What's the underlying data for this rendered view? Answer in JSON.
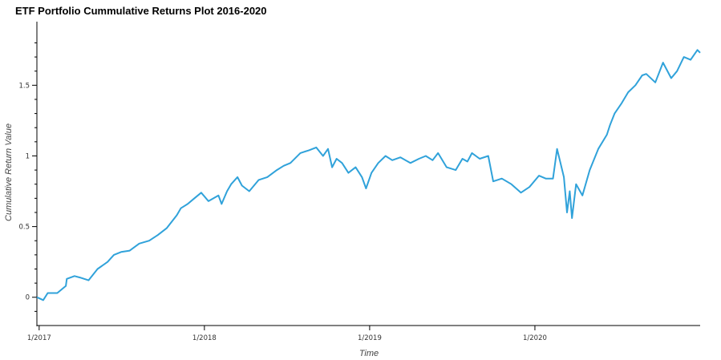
{
  "chart_data": {
    "type": "line",
    "title": "ETF Portfolio Cummulative Returns Plot 2016-2020",
    "xlabel": "Time",
    "ylabel": "Cumulative Return Value",
    "x_tick_labels": [
      "1/2017",
      "1/2018",
      "1/2019",
      "1/2020"
    ],
    "y_tick_labels": [
      "0",
      "0.5",
      "1",
      "1.5"
    ],
    "y_ticks": [
      0,
      0.5,
      1,
      1.5
    ],
    "xlim": [
      "2016-12-27",
      "2020-12-31"
    ],
    "ylim": [
      -0.2,
      1.95
    ],
    "grid": false,
    "series": [
      {
        "color": "#30a2da",
        "x": [
          "2016-12-27",
          "2017-01-10",
          "2017-01-20",
          "2017-02-10",
          "2017-03-01",
          "2017-03-03",
          "2017-03-20",
          "2017-04-01",
          "2017-04-20",
          "2017-05-10",
          "2017-06-01",
          "2017-06-15",
          "2017-07-01",
          "2017-07-20",
          "2017-08-10",
          "2017-09-01",
          "2017-09-20",
          "2017-10-10",
          "2017-11-01",
          "2017-11-10",
          "2017-11-25",
          "2017-12-10",
          "2017-12-25",
          "2018-01-10",
          "2018-02-01",
          "2018-02-08",
          "2018-02-20",
          "2018-03-01",
          "2018-03-15",
          "2018-03-25",
          "2018-04-10",
          "2018-05-01",
          "2018-05-20",
          "2018-06-10",
          "2018-06-25",
          "2018-07-10",
          "2018-08-01",
          "2018-08-20",
          "2018-09-05",
          "2018-09-20",
          "2018-10-01",
          "2018-10-10",
          "2018-10-20",
          "2018-11-01",
          "2018-11-15",
          "2018-12-01",
          "2018-12-15",
          "2018-12-24",
          "2019-01-05",
          "2019-01-20",
          "2019-02-05",
          "2019-02-20",
          "2019-03-10",
          "2019-04-01",
          "2019-04-20",
          "2019-05-05",
          "2019-05-20",
          "2019-06-01",
          "2019-06-20",
          "2019-07-10",
          "2019-07-25",
          "2019-08-05",
          "2019-08-15",
          "2019-09-01",
          "2019-09-20",
          "2019-10-01",
          "2019-10-20",
          "2019-11-10",
          "2019-12-01",
          "2019-12-20",
          "2020-01-10",
          "2020-01-25",
          "2020-02-10",
          "2020-02-19",
          "2020-03-05",
          "2020-03-12",
          "2020-03-18",
          "2020-03-23",
          "2020-04-01",
          "2020-04-15",
          "2020-05-01",
          "2020-05-20",
          "2020-06-08",
          "2020-06-15",
          "2020-06-25",
          "2020-07-10",
          "2020-07-25",
          "2020-08-10",
          "2020-08-25",
          "2020-09-03",
          "2020-09-23",
          "2020-10-10",
          "2020-10-28",
          "2020-11-10",
          "2020-11-25",
          "2020-12-10",
          "2020-12-25",
          "2020-12-31"
        ],
        "y": [
          0.0,
          -0.02,
          0.03,
          0.03,
          0.08,
          0.13,
          0.15,
          0.14,
          0.12,
          0.2,
          0.25,
          0.3,
          0.32,
          0.33,
          0.38,
          0.4,
          0.44,
          0.49,
          0.58,
          0.63,
          0.66,
          0.7,
          0.74,
          0.68,
          0.72,
          0.66,
          0.75,
          0.8,
          0.85,
          0.79,
          0.75,
          0.83,
          0.85,
          0.9,
          0.93,
          0.95,
          1.02,
          1.04,
          1.06,
          1.0,
          1.05,
          0.92,
          0.98,
          0.95,
          0.88,
          0.92,
          0.85,
          0.77,
          0.88,
          0.95,
          1.0,
          0.97,
          0.99,
          0.95,
          0.98,
          1.0,
          0.97,
          1.02,
          0.92,
          0.9,
          0.98,
          0.96,
          1.02,
          0.98,
          1.0,
          0.82,
          0.84,
          0.8,
          0.74,
          0.78,
          0.86,
          0.84,
          0.84,
          1.05,
          0.85,
          0.6,
          0.75,
          0.56,
          0.8,
          0.72,
          0.9,
          1.05,
          1.15,
          1.22,
          1.3,
          1.37,
          1.45,
          1.5,
          1.57,
          1.58,
          1.52,
          1.66,
          1.55,
          1.6,
          1.7,
          1.68,
          1.75,
          1.73
        ]
      }
    ]
  }
}
